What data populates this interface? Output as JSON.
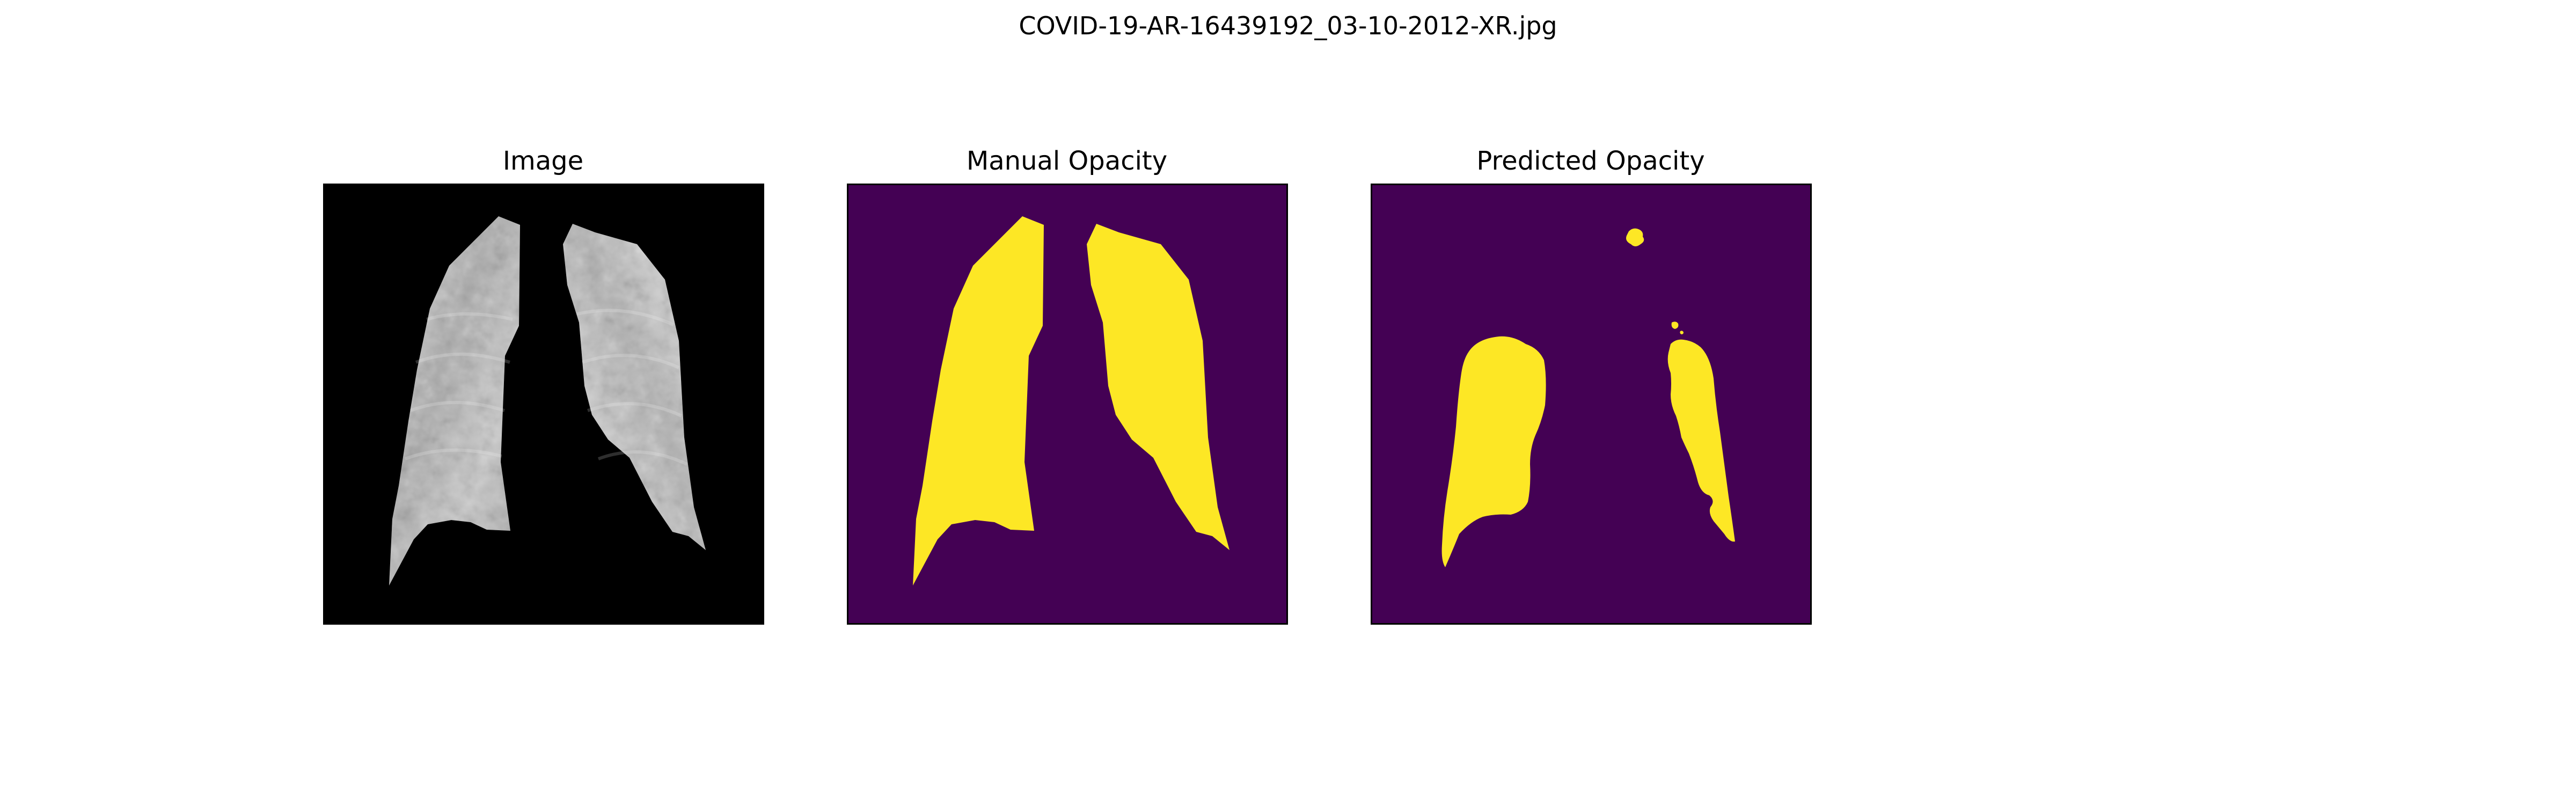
{
  "figure": {
    "title": "COVID-19-AR-16439192_03-10-2012-XR.jpg"
  },
  "panels": [
    {
      "id": "image",
      "title": "Image",
      "icon": "chest-xray-image"
    },
    {
      "id": "manual",
      "title": "Manual Opacity",
      "icon": "lung-mask-image"
    },
    {
      "id": "predicted",
      "title": "Predicted Opacity",
      "icon": "opacity-prediction-image"
    }
  ],
  "colors": {
    "xray_background": "#000000",
    "mask_background": "#440154",
    "mask_foreground": "#fde725",
    "frame_border": "#000000"
  }
}
